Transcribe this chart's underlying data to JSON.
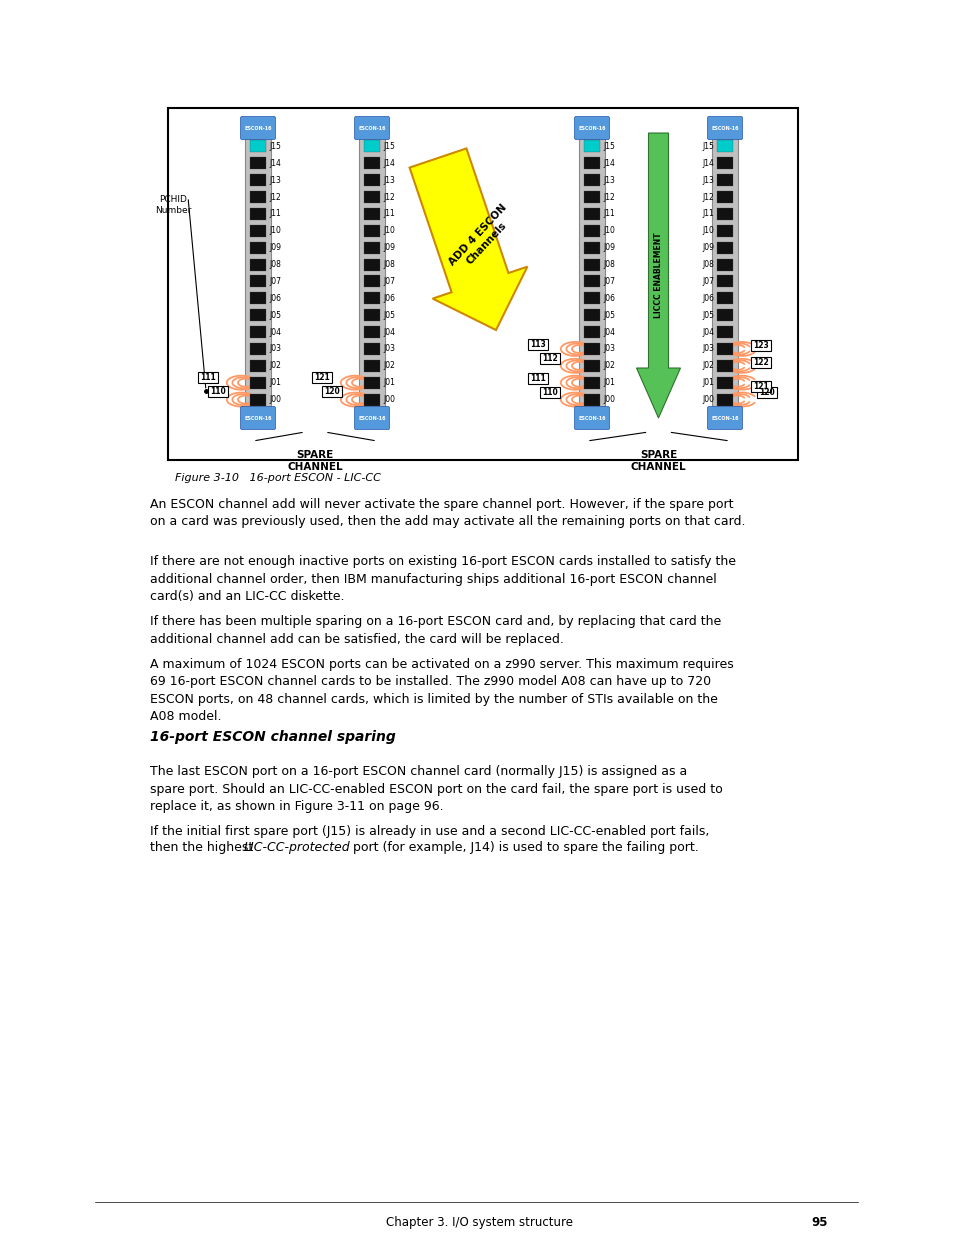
{
  "page_bg": "#ffffff",
  "card_bg": "#c0c0c0",
  "port_color": "#111111",
  "spare_port_color": "#00cccc",
  "cap_color_top": "#5599dd",
  "cap_color_bot": "#5599dd",
  "cable_color": "#ff9966",
  "green_arrow": "#44bb44",
  "yellow_arrow": "#ffff00",
  "yellow_border": "#cc8800",
  "figure_caption": "Figure 3-10   16-port ESCON - LIC-CC",
  "para1": "An ESCON channel add will never activate the spare channel port. However, if the spare port\non a card was previously used, then the add may activate all the remaining ports on that card.",
  "para2": "If there are not enough inactive ports on existing 16-port ESCON cards installed to satisfy the\nadditional channel order, then IBM manufacturing ships additional 16-port ESCON channel\ncard(s) and an LIC-CC diskette.",
  "para3": "If there has been multiple sparing on a 16-port ESCON card and, by replacing that card the\nadditional channel add can be satisfied, the card will be replaced.",
  "para4": "A maximum of 1024 ESCON ports can be activated on a z990 server. This maximum requires\n69 16-port ESCON channel cards to be installed. The z990 model A08 can have up to 720\nESCON ports, on 48 channel cards, which is limited by the number of STIs available on the\nA08 model.",
  "section_title": "16-port ESCON channel sparing",
  "para5": "The last ESCON port on a 16-port ESCON channel card (normally J15) is assigned as a\nspare port. Should an LIC-CC-enabled ESCON port on the card fail, the spare port is used to\nreplace it, as shown in Figure 3-11 on page 96.",
  "para6a": "If the initial first spare port (J15) is already in use and a second LIC-CC-enabled port fails,",
  "para6b": "then the highest ",
  "para6_italic": "LIC-CC-protected",
  "para6c": " port (for example, J14) is used to spare the failing port.",
  "footer": "Chapter 3. I/O system structure",
  "page_num": "95",
  "ports": [
    "J00",
    "J01",
    "J02",
    "J03",
    "J04",
    "J05",
    "J06",
    "J07",
    "J08",
    "J09",
    "J10",
    "J11",
    "J12",
    "J13",
    "J14",
    "J15"
  ]
}
